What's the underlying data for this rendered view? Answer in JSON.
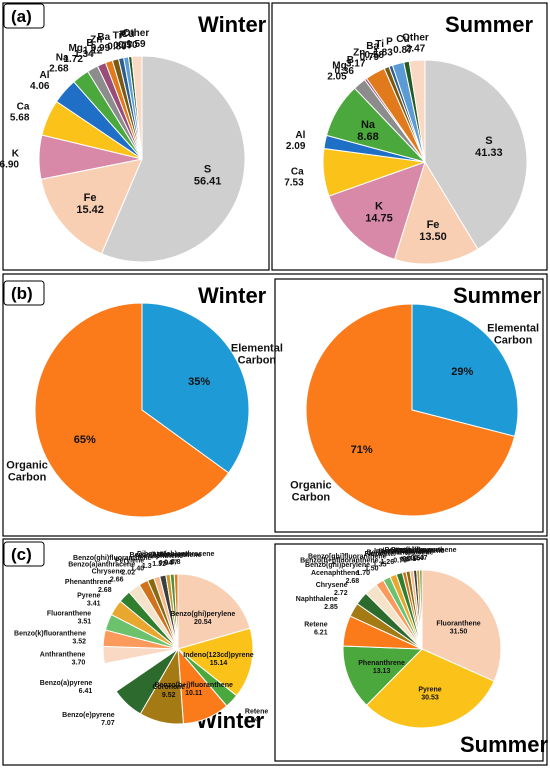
{
  "figure": {
    "panel_a": {
      "letter": "(a)",
      "winter_title": "Winter",
      "summer_title": "Summer"
    },
    "panel_b": {
      "letter": "(b)",
      "winter_title": "Winter",
      "summer_title": "Summer"
    },
    "panel_c": {
      "letter": "(c)",
      "winter_title": "Winter",
      "summer_title": "Summer"
    }
  },
  "colors": {
    "S": "#cfcfcf",
    "Fe": "#f9cfb4",
    "K": "#d889a8",
    "Ca": "#fbc31a",
    "Al": "#1f6fc6",
    "Na": "#4aa83c",
    "Mg": "#8c8c8c",
    "B": "#9a4d78",
    "Zn": "#e07a1c",
    "Ba": "#7a5a10",
    "Ti": "#2c5d8f",
    "P": "#5b9bd5",
    "Cu": "#245a24",
    "Other": "#f9d8c4",
    "ElementalCarbon": "#1e9bd7",
    "OrganicCarbon": "#fb7a1a"
  },
  "chart_data": [
    {
      "type": "pie",
      "panel": "a",
      "title": "Winter",
      "slices": [
        {
          "name": "S",
          "value": 56.41
        },
        {
          "name": "Fe",
          "value": 15.42
        },
        {
          "name": "K",
          "value": 6.9
        },
        {
          "name": "Ca",
          "value": 5.68
        },
        {
          "name": "Al",
          "value": 4.06
        },
        {
          "name": "Na",
          "value": 2.68
        },
        {
          "name": "Mg",
          "value": 1.72
        },
        {
          "name": "B",
          "value": 1.34
        },
        {
          "name": "Zn",
          "value": 1.12
        },
        {
          "name": "Ba",
          "value": 0.99
        },
        {
          "name": "Ti",
          "value": 0.8
        },
        {
          "name": "P",
          "value": 0.77
        },
        {
          "name": "Cu",
          "value": 0.5
        },
        {
          "name": "Other",
          "value": 1.59
        }
      ]
    },
    {
      "type": "pie",
      "panel": "a",
      "title": "Summer",
      "slices": [
        {
          "name": "S",
          "value": 41.33
        },
        {
          "name": "Fe",
          "value": 13.5
        },
        {
          "name": "K",
          "value": 14.75
        },
        {
          "name": "Ca",
          "value": 7.53
        },
        {
          "name": "Al",
          "value": 2.09
        },
        {
          "name": "Na",
          "value": 8.68
        },
        {
          "name": "Mg",
          "value": 2.05
        },
        {
          "name": "B",
          "value": 0.36
        },
        {
          "name": "Zn",
          "value": 3.17
        },
        {
          "name": "Ba",
          "value": 0.79
        },
        {
          "name": "Ti",
          "value": 0.58
        },
        {
          "name": "P",
          "value": 1.83
        },
        {
          "name": "Cu",
          "value": 0.87
        },
        {
          "name": "Other",
          "value": 2.47
        }
      ]
    },
    {
      "type": "pie",
      "panel": "b",
      "title": "Winter",
      "slices": [
        {
          "name": "Elemental Carbon",
          "value": 35,
          "label": "35%"
        },
        {
          "name": "Organic Carbon",
          "value": 65,
          "label": "65%"
        }
      ]
    },
    {
      "type": "pie",
      "panel": "b",
      "title": "Summer",
      "slices": [
        {
          "name": "Elemental Carbon",
          "value": 29,
          "label": "29%"
        },
        {
          "name": "Organic Carbon",
          "value": 71,
          "label": "71%"
        }
      ]
    },
    {
      "type": "pie",
      "panel": "c",
      "title": "Winter",
      "slices": [
        {
          "name": "Benzo(ghi)perylene",
          "value": 20.54,
          "color": "#f9cfb4"
        },
        {
          "name": "Indeno(123cd)pyrene",
          "value": 15.14,
          "color": "#fbc31a"
        },
        {
          "name": "Retene",
          "value": 3.04,
          "color": "#4aa83c"
        },
        {
          "name": "Benzo(b+j)fluoranthene",
          "value": 10.11,
          "color": "#fb7a1a"
        },
        {
          "name": "Coronene",
          "value": 9.52,
          "color": "#a37a14"
        },
        {
          "name": "Benzo(e)pyrene",
          "value": 7.07,
          "color": "#2d6a2d"
        },
        {
          "name": "Benzo(a)pyrene",
          "value": 6.41,
          "color": "#ffffff"
        },
        {
          "name": "Anthranthene",
          "value": 3.7,
          "color": "#f9d8c4"
        },
        {
          "name": "Benzo(k)fluoranthene",
          "value": 3.52,
          "color": "#fb9a5a"
        },
        {
          "name": "Fluoranthene",
          "value": 3.51,
          "color": "#6cc26c"
        },
        {
          "name": "Pyrene",
          "value": 3.41,
          "color": "#e8a830"
        },
        {
          "name": "Phenanthrene",
          "value": 2.68,
          "color": "#2f7f2f"
        },
        {
          "name": "Chrysene",
          "value": 2.66,
          "color": "#f4e3c8"
        },
        {
          "name": "Benzo(a)anthracene",
          "value": 2.02,
          "color": "#d1721c"
        },
        {
          "name": "Perylene",
          "value": 1.4,
          "color": "#8a6a10"
        },
        {
          "name": "Benzo(ghi)fluoranthene",
          "value": 1.3,
          "color": "#f6b98c"
        },
        {
          "name": "Acenaphthene",
          "value": 1.31,
          "color": "#3d3d3d"
        },
        {
          "name": "Benzo(a)fluoranthene",
          "value": 0.94,
          "color": "#c79a2a"
        },
        {
          "name": "Anthracene",
          "value": 0.87,
          "color": "#5b8c3a"
        },
        {
          "name": "Dibenzo(ah)anthracene",
          "value": 0.8,
          "color": "#e07a1c"
        }
      ]
    },
    {
      "type": "pie",
      "panel": "c",
      "title": "Summer",
      "slices": [
        {
          "name": "Fluoranthene",
          "value": 31.5,
          "color": "#f9cfb4"
        },
        {
          "name": "Pyrene",
          "value": 30.53,
          "color": "#fbc31a"
        },
        {
          "name": "Phenanthrene",
          "value": 13.13,
          "color": "#4aa83c"
        },
        {
          "name": "Retene",
          "value": 6.21,
          "color": "#fb7a1a"
        },
        {
          "name": "Naphthalene",
          "value": 2.85,
          "color": "#a37a14"
        },
        {
          "name": "Chrysene",
          "value": 2.72,
          "color": "#2d6a2d"
        },
        {
          "name": "Acenaphthene",
          "value": 2.68,
          "color": "#f4e3c8"
        },
        {
          "name": "Benzo(ghi)perylene",
          "value": 1.7,
          "color": "#fb9a5a"
        },
        {
          "name": "Benzo(b+j)fluoranthene",
          "value": 1.5,
          "color": "#6cc26c"
        },
        {
          "name": "Benzo[ghi]fluoranthene",
          "value": 1.35,
          "color": "#e8a830"
        },
        {
          "name": "Fluorene",
          "value": 1.26,
          "color": "#2f7f2f"
        },
        {
          "name": "Benzo(a)anthracene",
          "value": 0.76,
          "color": "#d1721c"
        },
        {
          "name": "Benzo(e)pyrene",
          "value": 0.8,
          "color": "#8a6a10"
        },
        {
          "name": "Indeno(123cd)pyrene",
          "value": 0.71,
          "color": "#f6b98c"
        },
        {
          "name": "Anthracene",
          "value": 0.65,
          "color": "#3d3d3d"
        },
        {
          "name": "Benzo(a)pyrene",
          "value": 0.6,
          "color": "#c79a2a"
        },
        {
          "name": "Benzo(k)fluoranthene",
          "value": 0.47,
          "color": "#5b8c3a"
        }
      ]
    }
  ]
}
